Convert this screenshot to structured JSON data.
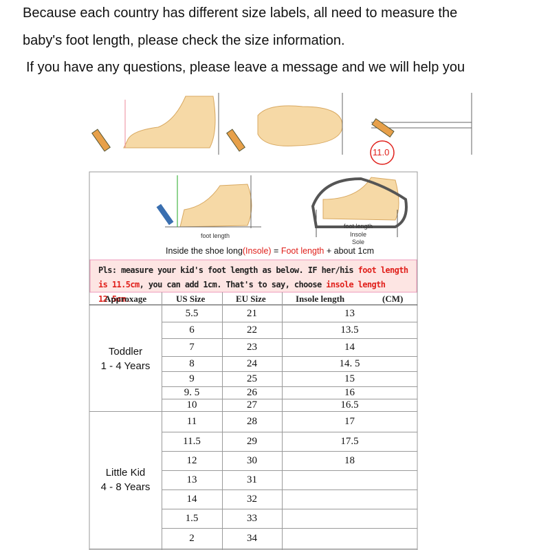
{
  "header": {
    "lines": [
      "Because each country has different size labels, all need to measure the",
      "baby's foot length, please check the size information.",
      " If you have any questions, please leave a message and we will help you"
    ]
  },
  "illustrations": {
    "measure_value": "11.0",
    "left_label": "foot length",
    "right_labels": [
      "foot length",
      "Insole",
      "Sole"
    ]
  },
  "formula": {
    "parts": [
      {
        "text": "Inside the shoe long",
        "color": "#111111"
      },
      {
        "text": "(Insole)",
        "color": "#e0201b"
      },
      {
        "text": " = ",
        "color": "#111111"
      },
      {
        "text": "Foot length",
        "color": "#e0201b"
      },
      {
        "text": " + about 1cm",
        "color": "#111111"
      }
    ]
  },
  "notice": {
    "parts": [
      {
        "text": "Pls: measure your kid's foot length as below. IF her/his ",
        "color": "#222222"
      },
      {
        "text": "foot length is 11.5cm",
        "color": "#e0201b"
      },
      {
        "text": ", you can add 1cm. That's to say, choose ",
        "color": "#222222"
      },
      {
        "text": "insole length 12.5cm.",
        "color": "#e0201b"
      }
    ]
  },
  "table": {
    "headers": [
      "Approxage",
      "US Size",
      "EU Size",
      "Insole length",
      "(CM)"
    ],
    "groups": [
      {
        "label": [
          "Toddler",
          "1 - 4 Years"
        ],
        "rows": [
          [
            "5.5",
            "21",
            "13"
          ],
          [
            "6",
            "22",
            "13.5"
          ],
          [
            "7",
            "23",
            "14"
          ],
          [
            "8",
            "24",
            "14. 5"
          ],
          [
            "9",
            "25",
            "15"
          ],
          [
            "9. 5",
            "26",
            "16"
          ],
          [
            "10",
            "27",
            "16.5"
          ]
        ]
      },
      {
        "label": [
          "Little Kid",
          "4 - 8 Years"
        ],
        "rows": [
          [
            "11",
            "28",
            "17"
          ],
          [
            "11.5",
            "29",
            "17.5"
          ],
          [
            "12",
            "30",
            "18"
          ],
          [
            "13",
            "31"
          ],
          [
            "14",
            "32"
          ],
          [
            "1.5",
            "33"
          ],
          [
            "2",
            "34"
          ]
        ]
      }
    ]
  }
}
